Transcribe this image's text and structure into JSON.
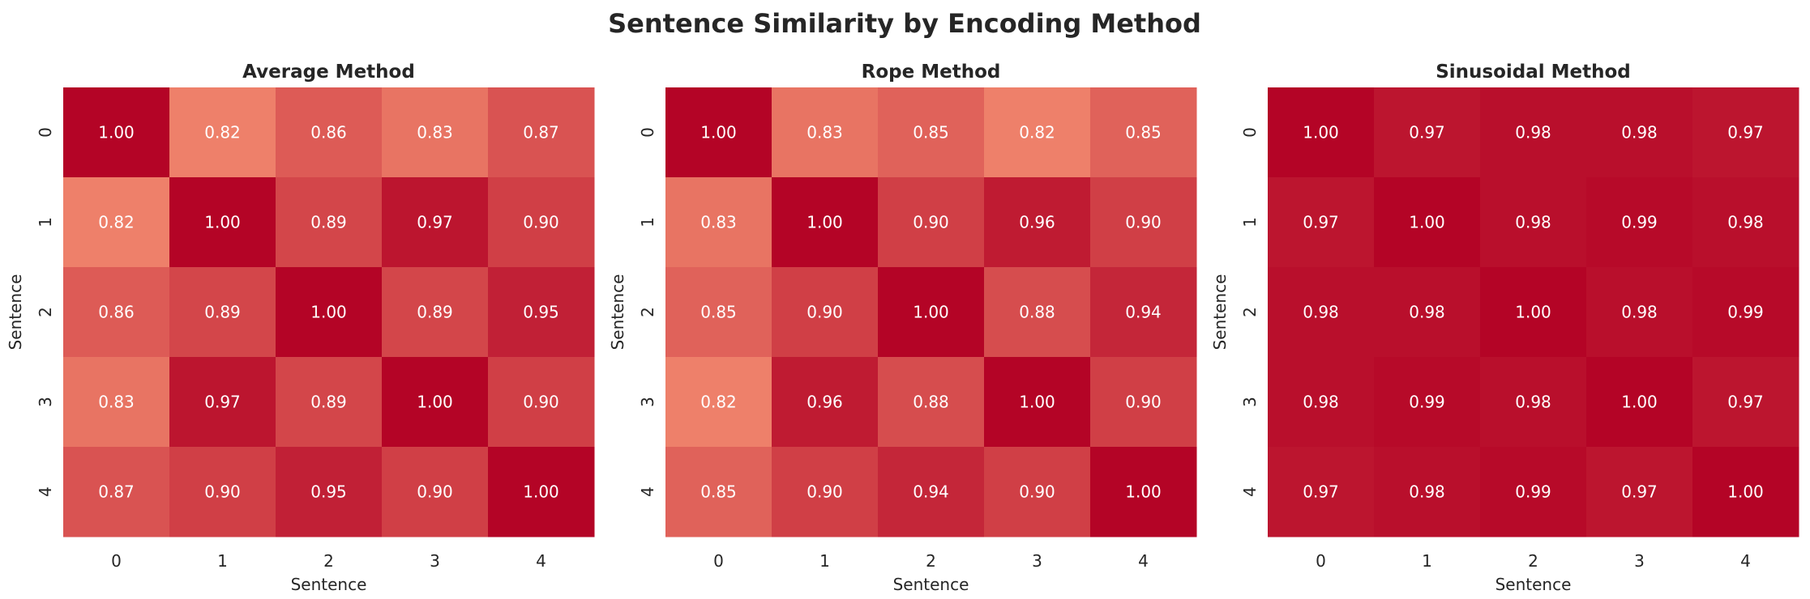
{
  "title": "Sentence Similarity by Encoding Method",
  "chart_data": [
    {
      "type": "heatmap",
      "title": "Average Method",
      "xlabel": "Sentence",
      "ylabel": "Sentence",
      "x_categories": [
        "0",
        "1",
        "2",
        "3",
        "4"
      ],
      "y_categories": [
        "0",
        "1",
        "2",
        "3",
        "4"
      ],
      "values": [
        [
          1.0,
          0.82,
          0.86,
          0.83,
          0.87
        ],
        [
          0.82,
          1.0,
          0.89,
          0.97,
          0.9
        ],
        [
          0.86,
          0.89,
          1.0,
          0.89,
          0.95
        ],
        [
          0.83,
          0.97,
          0.89,
          1.0,
          0.9
        ],
        [
          0.87,
          0.9,
          0.95,
          0.9,
          1.0
        ]
      ],
      "colorbar": false,
      "annotations": true
    },
    {
      "type": "heatmap",
      "title": "Rope Method",
      "xlabel": "Sentence",
      "ylabel": "Sentence",
      "x_categories": [
        "0",
        "1",
        "2",
        "3",
        "4"
      ],
      "y_categories": [
        "0",
        "1",
        "2",
        "3",
        "4"
      ],
      "values": [
        [
          1.0,
          0.83,
          0.85,
          0.82,
          0.85
        ],
        [
          0.83,
          1.0,
          0.9,
          0.96,
          0.9
        ],
        [
          0.85,
          0.9,
          1.0,
          0.88,
          0.94
        ],
        [
          0.82,
          0.96,
          0.88,
          1.0,
          0.9
        ],
        [
          0.85,
          0.9,
          0.94,
          0.9,
          1.0
        ]
      ],
      "colorbar": false,
      "annotations": true
    },
    {
      "type": "heatmap",
      "title": "Sinusoidal Method",
      "xlabel": "Sentence",
      "ylabel": "Sentence",
      "x_categories": [
        "0",
        "1",
        "2",
        "3",
        "4"
      ],
      "y_categories": [
        "0",
        "1",
        "2",
        "3",
        "4"
      ],
      "values": [
        [
          1.0,
          0.97,
          0.98,
          0.98,
          0.97
        ],
        [
          0.97,
          1.0,
          0.98,
          0.99,
          0.98
        ],
        [
          0.98,
          0.98,
          1.0,
          0.98,
          0.99
        ],
        [
          0.98,
          0.99,
          0.98,
          1.0,
          0.97
        ],
        [
          0.97,
          0.98,
          0.99,
          0.97,
          1.0
        ]
      ],
      "colorbar": false,
      "annotations": true
    }
  ],
  "colors": {
    "low": "#ee806a",
    "high": "#b40426",
    "annotation_text": "#ffffff"
  }
}
